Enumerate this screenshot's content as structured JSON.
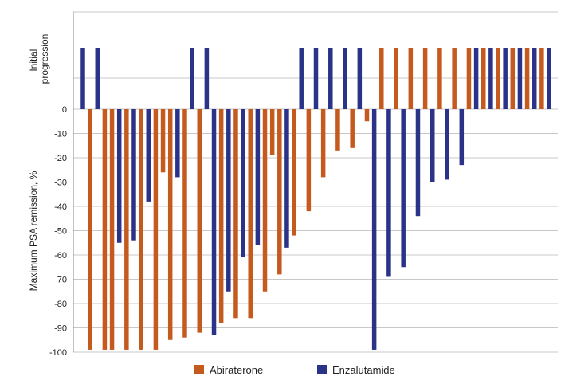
{
  "chart_data": {
    "type": "bar",
    "ylabel": "Maximum PSA remission, %",
    "progression_label": [
      "Initial",
      "progression"
    ],
    "ylim": [
      -100,
      0
    ],
    "yticks": [
      0,
      -10,
      -20,
      -30,
      -40,
      -50,
      -60,
      -70,
      -80,
      -90,
      -100
    ],
    "grid": true,
    "legend_position": "bottom-center",
    "colors": {
      "Abiraterone": "#C55A1E",
      "Enzalutamide": "#2B3388"
    },
    "bars": [
      {
        "series": "Enzalutamide",
        "value": "progression"
      },
      {
        "series": "Abiraterone",
        "value": -99
      },
      {
        "series": "Enzalutamide",
        "value": "progression"
      },
      {
        "series": "Abiraterone",
        "value": -99
      },
      {
        "series": "Abiraterone",
        "value": -99
      },
      {
        "series": "Enzalutamide",
        "value": -55
      },
      {
        "series": "Abiraterone",
        "value": -99
      },
      {
        "series": "Enzalutamide",
        "value": -54
      },
      {
        "series": "Abiraterone",
        "value": -99
      },
      {
        "series": "Enzalutamide",
        "value": -38
      },
      {
        "series": "Abiraterone",
        "value": -99
      },
      {
        "series": "Abiraterone",
        "value": -26
      },
      {
        "series": "Abiraterone",
        "value": -95
      },
      {
        "series": "Enzalutamide",
        "value": -28
      },
      {
        "series": "Abiraterone",
        "value": -94
      },
      {
        "series": "Enzalutamide",
        "value": "progression"
      },
      {
        "series": "Abiraterone",
        "value": -92
      },
      {
        "series": "Enzalutamide",
        "value": "progression"
      },
      {
        "series": "Enzalutamide",
        "value": -93
      },
      {
        "series": "Abiraterone",
        "value": -88
      },
      {
        "series": "Enzalutamide",
        "value": -75
      },
      {
        "series": "Abiraterone",
        "value": -86
      },
      {
        "series": "Enzalutamide",
        "value": -61
      },
      {
        "series": "Abiraterone",
        "value": -86
      },
      {
        "series": "Enzalutamide",
        "value": -56
      },
      {
        "series": "Abiraterone",
        "value": -75
      },
      {
        "series": "Abiraterone",
        "value": -19
      },
      {
        "series": "Abiraterone",
        "value": -68
      },
      {
        "series": "Enzalutamide",
        "value": -57
      },
      {
        "series": "Abiraterone",
        "value": -52
      },
      {
        "series": "Enzalutamide",
        "value": "progression"
      },
      {
        "series": "Abiraterone",
        "value": -42
      },
      {
        "series": "Enzalutamide",
        "value": "progression"
      },
      {
        "series": "Abiraterone",
        "value": -28
      },
      {
        "series": "Enzalutamide",
        "value": "progression"
      },
      {
        "series": "Abiraterone",
        "value": -17
      },
      {
        "series": "Enzalutamide",
        "value": "progression"
      },
      {
        "series": "Abiraterone",
        "value": -16
      },
      {
        "series": "Enzalutamide",
        "value": "progression"
      },
      {
        "series": "Abiraterone",
        "value": -5
      },
      {
        "series": "Enzalutamide",
        "value": -99
      },
      {
        "series": "Abiraterone",
        "value": "progression"
      },
      {
        "series": "Enzalutamide",
        "value": -69
      },
      {
        "series": "Abiraterone",
        "value": "progression"
      },
      {
        "series": "Enzalutamide",
        "value": -65
      },
      {
        "series": "Abiraterone",
        "value": "progression"
      },
      {
        "series": "Enzalutamide",
        "value": -44
      },
      {
        "series": "Abiraterone",
        "value": "progression"
      },
      {
        "series": "Enzalutamide",
        "value": -30
      },
      {
        "series": "Abiraterone",
        "value": "progression"
      },
      {
        "series": "Enzalutamide",
        "value": -29
      },
      {
        "series": "Abiraterone",
        "value": "progression"
      },
      {
        "series": "Enzalutamide",
        "value": -23
      },
      {
        "series": "Abiraterone",
        "value": "progression"
      },
      {
        "series": "Enzalutamide",
        "value": "progression"
      },
      {
        "series": "Abiraterone",
        "value": "progression"
      },
      {
        "series": "Enzalutamide",
        "value": "progression"
      },
      {
        "series": "Abiraterone",
        "value": "progression"
      },
      {
        "series": "Enzalutamide",
        "value": "progression"
      },
      {
        "series": "Abiraterone",
        "value": "progression"
      },
      {
        "series": "Enzalutamide",
        "value": "progression"
      },
      {
        "series": "Abiraterone",
        "value": "progression"
      },
      {
        "series": "Enzalutamide",
        "value": "progression"
      },
      {
        "series": "Abiraterone",
        "value": "progression"
      },
      {
        "series": "Enzalutamide",
        "value": "progression"
      }
    ],
    "legend": [
      {
        "name": "Abiraterone",
        "color": "#C55A1E"
      },
      {
        "name": "Enzalutamide",
        "color": "#2B3388"
      }
    ]
  }
}
